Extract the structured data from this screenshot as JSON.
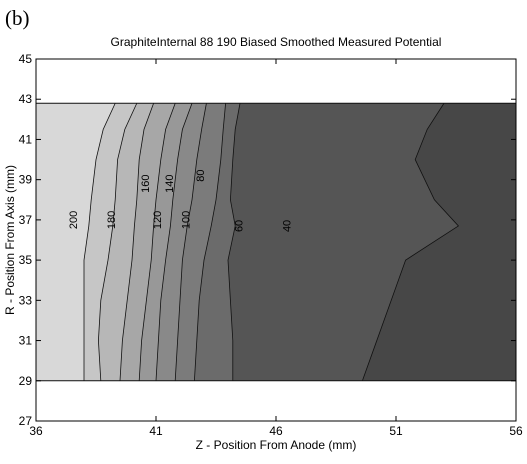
{
  "panel_label": "(b)",
  "chart_data": {
    "type": "contour",
    "title": "GraphiteInternal 88 190 Biased Smoothed Measured Potential",
    "xlabel": "Z - Position From Anode (mm)",
    "ylabel": "R - Position From Axis (mm)",
    "xlim": [
      36,
      56
    ],
    "ylim": [
      27,
      45
    ],
    "x_ticks": [
      "36",
      "41",
      "46",
      "51",
      "56"
    ],
    "y_ticks": [
      "27",
      "29",
      "31",
      "33",
      "35",
      "37",
      "39",
      "41",
      "43",
      "45"
    ],
    "data_region": {
      "z": [
        36,
        56
      ],
      "r": [
        29,
        42.8
      ]
    },
    "contour_levels": [
      200,
      180,
      160,
      140,
      120,
      100,
      80,
      60,
      40
    ],
    "contour_labels": [
      {
        "text": "200",
        "z": 37.7,
        "r": 37
      },
      {
        "text": "180",
        "z": 39.3,
        "r": 37
      },
      {
        "text": "160",
        "z": 40.7,
        "r": 38.8
      },
      {
        "text": "140",
        "z": 41.7,
        "r": 38.8
      },
      {
        "text": "120",
        "z": 41.2,
        "r": 37
      },
      {
        "text": "100",
        "z": 42.4,
        "r": 37
      },
      {
        "text": "80",
        "z": 43.0,
        "r": 39.2
      },
      {
        "text": "60",
        "z": 44.6,
        "r": 36.7
      },
      {
        "text": "40",
        "z": 46.6,
        "r": 36.7
      }
    ],
    "colors": {
      "gt200": "#d8d8d8",
      "180": "#c6c6c6",
      "160": "#b7b7b7",
      "140": "#a7a7a7",
      "120": "#989898",
      "100": "#898989",
      "80": "#7b7b7b",
      "60": "#6b6b6b",
      "40": "#555555",
      "lt40": "#474747"
    },
    "grid": false,
    "legend": "none"
  }
}
